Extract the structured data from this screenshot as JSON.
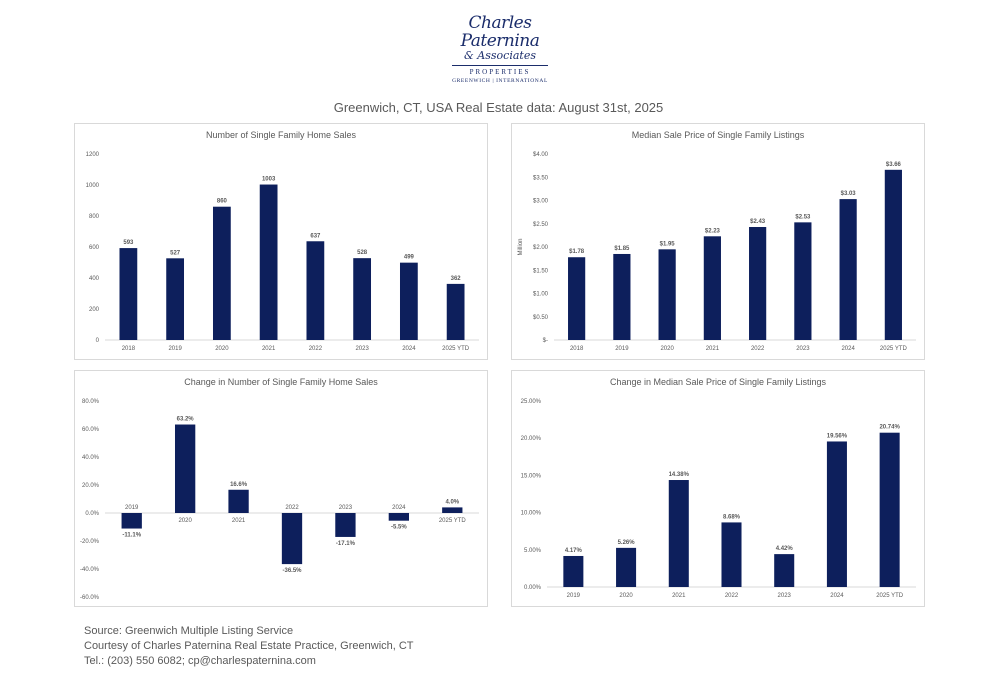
{
  "logo": {
    "name_line1": "Charles Paternina",
    "name_line2": "& Associates",
    "line3": "PROPERTIES",
    "line4": "GREENWICH | INTERNATIONAL"
  },
  "page_title": "Greenwich, CT, USA Real Estate data: August 31st, 2025",
  "colors": {
    "bar": "#0d1f5c",
    "axis": "#d9d9d9",
    "text": "#595959"
  },
  "chart_data": [
    {
      "type": "bar",
      "title": "Number of Single Family Home Sales",
      "categories": [
        "2018",
        "2019",
        "2020",
        "2021",
        "2022",
        "2023",
        "2024",
        "2025 YTD"
      ],
      "values": [
        593,
        527,
        860,
        1003,
        637,
        528,
        499,
        362
      ],
      "data_labels": [
        "593",
        "527",
        "860",
        "1003",
        "637",
        "528",
        "499",
        "362"
      ],
      "ylim": [
        0,
        1200
      ],
      "yticks": [
        0,
        200,
        400,
        600,
        800,
        1000,
        1200
      ],
      "ytick_labels": [
        "0",
        "200",
        "400",
        "600",
        "800",
        "1000",
        "1200"
      ],
      "xlabel": "",
      "ylabel": "",
      "grid": false
    },
    {
      "type": "bar",
      "title": "Median Sale Price of Single Family Listings",
      "categories": [
        "2018",
        "2019",
        "2020",
        "2021",
        "2022",
        "2023",
        "2024",
        "2025 YTD"
      ],
      "values": [
        1.78,
        1.85,
        1.95,
        2.23,
        2.43,
        2.53,
        3.03,
        3.66
      ],
      "data_labels": [
        "$1.78",
        "$1.85",
        "$1.95",
        "$2.23",
        "$2.43",
        "$2.53",
        "$3.03",
        "$3.66"
      ],
      "ylim": [
        0,
        4
      ],
      "yticks": [
        0,
        0.5,
        1,
        1.5,
        2,
        2.5,
        3,
        3.5,
        4
      ],
      "ytick_labels": [
        "$-",
        "$0.50",
        "$1.00",
        "$1.50",
        "$2.00",
        "$2.50",
        "$3.00",
        "$3.50",
        "$4.00"
      ],
      "xlabel": "",
      "ylabel": "Million",
      "grid": false
    },
    {
      "type": "bar",
      "title": "Change in Number of Single Family Home Sales",
      "categories": [
        "2019",
        "2020",
        "2021",
        "2022",
        "2023",
        "2024",
        "2025 YTD"
      ],
      "values": [
        -11.1,
        63.2,
        16.6,
        -36.5,
        -17.1,
        -5.5,
        4.0
      ],
      "data_labels": [
        "-11.1%",
        "63.2%",
        "16.6%",
        "-36.5%",
        "-17.1%",
        "-5.5%",
        "4.0%"
      ],
      "ylim": [
        -60,
        80
      ],
      "yticks": [
        -60,
        -40,
        -20,
        0,
        20,
        40,
        60,
        80
      ],
      "ytick_labels": [
        "-60.0%",
        "-40.0%",
        "-20.0%",
        "0.0%",
        "20.0%",
        "40.0%",
        "60.0%",
        "80.0%"
      ],
      "xlabel": "",
      "ylabel": "",
      "grid": false
    },
    {
      "type": "bar",
      "title": "Change in Median Sale Price of Single Family Listings",
      "categories": [
        "2019",
        "2020",
        "2021",
        "2022",
        "2023",
        "2024",
        "2025 YTD"
      ],
      "values": [
        4.17,
        5.26,
        14.38,
        8.68,
        4.42,
        19.56,
        20.74
      ],
      "data_labels": [
        "4.17%",
        "5.26%",
        "14.38%",
        "8.68%",
        "4.42%",
        "19.56%",
        "20.74%"
      ],
      "ylim": [
        0,
        25
      ],
      "yticks": [
        0,
        5,
        10,
        15,
        20,
        25
      ],
      "ytick_labels": [
        "0.00%",
        "5.00%",
        "10.00%",
        "15.00%",
        "20.00%",
        "25.00%"
      ],
      "xlabel": "",
      "ylabel": "",
      "grid": false
    }
  ],
  "footer": {
    "line1": "Source: Greenwich Multiple Listing Service",
    "line2": "Courtesy of Charles Paternina Real Estate Practice, Greenwich, CT",
    "line3": "Tel.: (203) 550 6082; cp@charlespaternina.com"
  }
}
